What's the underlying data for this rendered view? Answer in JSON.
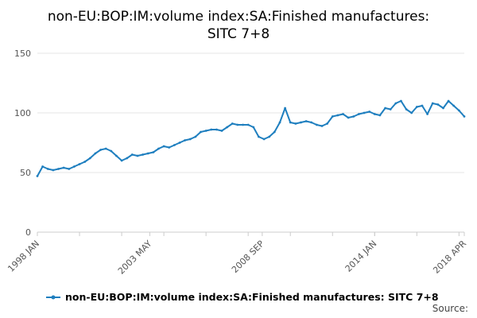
{
  "chart_data": {
    "type": "line",
    "title": "non-EU:BOP:IM:volume index:SA:Finished manufactures: SITC 7+8",
    "xlabel": "",
    "ylabel": "",
    "ylim": [
      0,
      150
    ],
    "yticks": [
      "0",
      "50",
      "100",
      "150"
    ],
    "xtick_labels": [
      "1998 JAN",
      "2003 MAY",
      "2008 SEP",
      "2014 JAN",
      "2018 APR"
    ],
    "xlim": [
      "1998-01",
      "2018-04"
    ],
    "grid": true,
    "legend_position": "bottom",
    "series": [
      {
        "name": "non-EU:BOP:IM:volume index:SA:Finished manufactures: SITC 7+8",
        "color": "#1f7fbf",
        "x": [
          "1998-01",
          "1998-04",
          "1998-07",
          "1998-10",
          "1999-01",
          "1999-04",
          "1999-07",
          "1999-10",
          "2000-01",
          "2000-04",
          "2000-07",
          "2000-10",
          "2001-01",
          "2001-04",
          "2001-07",
          "2001-10",
          "2002-01",
          "2002-04",
          "2002-07",
          "2002-10",
          "2003-01",
          "2003-04",
          "2003-07",
          "2003-10",
          "2004-01",
          "2004-04",
          "2004-07",
          "2004-10",
          "2005-01",
          "2005-04",
          "2005-07",
          "2005-10",
          "2006-01",
          "2006-04",
          "2006-07",
          "2006-10",
          "2007-01",
          "2007-04",
          "2007-07",
          "2007-10",
          "2008-01",
          "2008-04",
          "2008-07",
          "2008-10",
          "2009-01",
          "2009-04",
          "2009-07",
          "2009-10",
          "2010-01",
          "2010-04",
          "2010-07",
          "2010-10",
          "2011-01",
          "2011-04",
          "2011-07",
          "2011-10",
          "2012-01",
          "2012-04",
          "2012-07",
          "2012-10",
          "2013-01",
          "2013-04",
          "2013-07",
          "2013-10",
          "2014-01",
          "2014-04",
          "2014-07",
          "2014-10",
          "2015-01",
          "2015-04",
          "2015-07",
          "2015-10",
          "2016-01",
          "2016-04",
          "2016-07",
          "2016-10",
          "2017-01",
          "2017-04",
          "2017-07",
          "2017-10",
          "2018-01",
          "2018-04"
        ],
        "values": [
          47,
          55,
          53,
          52,
          53,
          54,
          53,
          55,
          57,
          59,
          62,
          66,
          69,
          70,
          68,
          64,
          60,
          62,
          65,
          64,
          65,
          66,
          67,
          70,
          72,
          71,
          73,
          75,
          77,
          78,
          80,
          84,
          85,
          86,
          86,
          85,
          88,
          91,
          90,
          90,
          90,
          88,
          80,
          78,
          80,
          84,
          92,
          104,
          92,
          91,
          92,
          93,
          92,
          90,
          89,
          91,
          97,
          98,
          99,
          96,
          97,
          99,
          100,
          101,
          99,
          98,
          104,
          103,
          108,
          110,
          103,
          100,
          105,
          106,
          99,
          108,
          107,
          104,
          110,
          106,
          102,
          97
        ]
      }
    ]
  },
  "legend": {
    "label": "non-EU:BOP:IM:volume index:SA:Finished manufactures: SITC 7+8"
  },
  "source_label": "Source:"
}
